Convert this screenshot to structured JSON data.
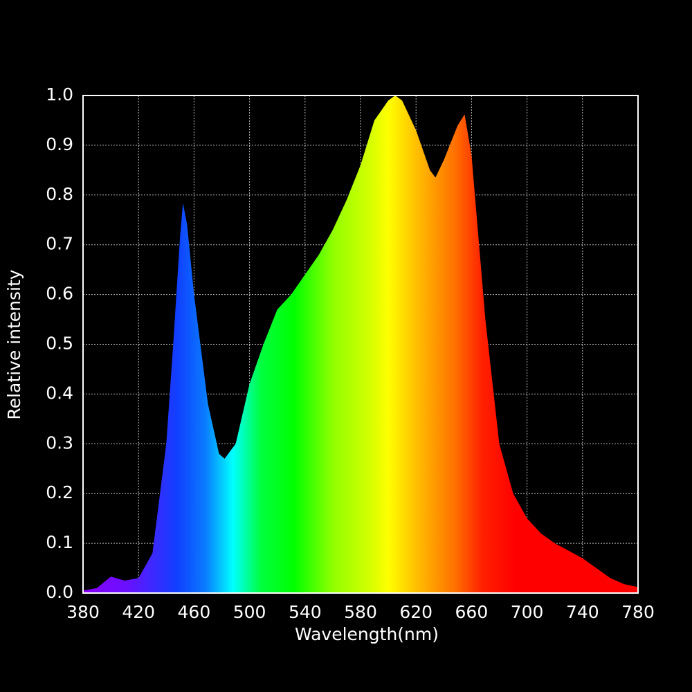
{
  "chart_data": {
    "type": "area",
    "x_label": "Wavelength(nm)",
    "y_label": "Relative intensity",
    "x": [
      380,
      390,
      400,
      410,
      420,
      430,
      440,
      445,
      450,
      452,
      455,
      460,
      470,
      478,
      482,
      490,
      500,
      510,
      520,
      530,
      540,
      550,
      560,
      570,
      580,
      590,
      600,
      605,
      610,
      620,
      630,
      634,
      640,
      650,
      655,
      660,
      670,
      680,
      690,
      700,
      710,
      720,
      730,
      740,
      750,
      760,
      770,
      780
    ],
    "values": [
      0.005,
      0.01,
      0.033,
      0.025,
      0.03,
      0.08,
      0.3,
      0.5,
      0.72,
      0.784,
      0.74,
      0.6,
      0.38,
      0.28,
      0.27,
      0.3,
      0.42,
      0.5,
      0.57,
      0.6,
      0.64,
      0.68,
      0.73,
      0.79,
      0.86,
      0.95,
      0.99,
      1.0,
      0.99,
      0.93,
      0.85,
      0.835,
      0.87,
      0.94,
      0.962,
      0.88,
      0.55,
      0.3,
      0.2,
      0.15,
      0.12,
      0.1,
      0.085,
      0.07,
      0.05,
      0.03,
      0.018,
      0.012
    ],
    "xlim": [
      380,
      780
    ],
    "ylim": [
      0,
      1
    ],
    "xticks": [
      380,
      420,
      460,
      500,
      540,
      580,
      620,
      660,
      700,
      740,
      780
    ],
    "yticks": [
      {
        "value": 0,
        "label": "0.0"
      },
      0.1,
      0.2,
      0.3,
      0.4,
      0.5,
      0.6,
      0.7,
      0.8,
      0.9,
      {
        "value": 1,
        "label": "1.0"
      }
    ],
    "grid": true
  }
}
